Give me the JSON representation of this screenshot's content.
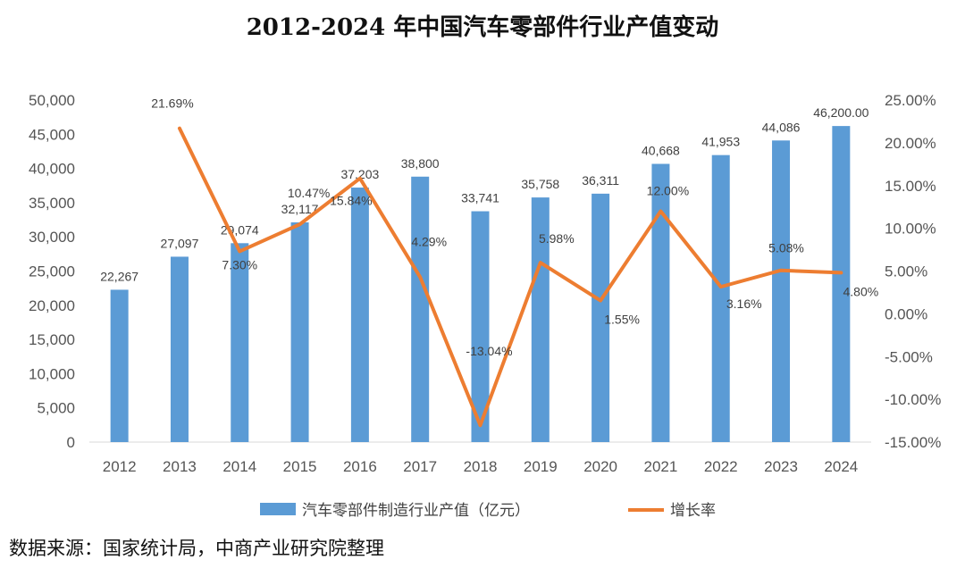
{
  "title": "2012-2024 年中国汽车零部件行业产值变动",
  "source": "数据来源：国家统计局，中商产业研究院整理",
  "chart_data": {
    "type": "bar",
    "categories": [
      "2012",
      "2013",
      "2014",
      "2015",
      "2016",
      "2017",
      "2018",
      "2019",
      "2020",
      "2021",
      "2022",
      "2023",
      "2024"
    ],
    "series": [
      {
        "name": "汽车零部件制造行业产值（亿元）",
        "type": "bar",
        "axis": "left",
        "color": "#5B9BD5",
        "values": [
          22267,
          27097,
          29074,
          32117,
          37203,
          38800,
          33741,
          35758,
          36311,
          40668,
          41953,
          44086,
          46200
        ],
        "labels": [
          "22,267",
          "27,097",
          "29,074",
          "32,117",
          "37,203",
          "38,800",
          "33,741",
          "35,758",
          "36,311",
          "40,668",
          "41,953",
          "44,086",
          "46,200.00"
        ]
      },
      {
        "name": "增长率",
        "type": "line",
        "axis": "right",
        "color": "#ED7D31",
        "values": [
          null,
          21.69,
          7.3,
          10.47,
          15.84,
          4.29,
          -13.04,
          5.98,
          1.55,
          12.0,
          3.16,
          5.08,
          4.8
        ],
        "labels": [
          "",
          "21.69%",
          "7.30%",
          "10.47%",
          "15.84%",
          "4.29%",
          "-13.04%",
          "5.98%",
          "1.55%",
          "12.00%",
          "3.16%",
          "5.08%",
          "4.80%"
        ]
      }
    ],
    "y_left": {
      "min": 0,
      "max": 50000,
      "step": 5000,
      "ticks": [
        "0",
        "5,000",
        "10,000",
        "15,000",
        "20,000",
        "25,000",
        "30,000",
        "35,000",
        "40,000",
        "45,000",
        "50,000"
      ]
    },
    "y_right": {
      "min": -15,
      "max": 25,
      "step": 5,
      "ticks": [
        "-15.00%",
        "-10.00%",
        "-5.00%",
        "0.00%",
        "5.00%",
        "10.00%",
        "15.00%",
        "20.00%",
        "25.00%"
      ]
    },
    "grid": false,
    "legend_position": "bottom"
  }
}
